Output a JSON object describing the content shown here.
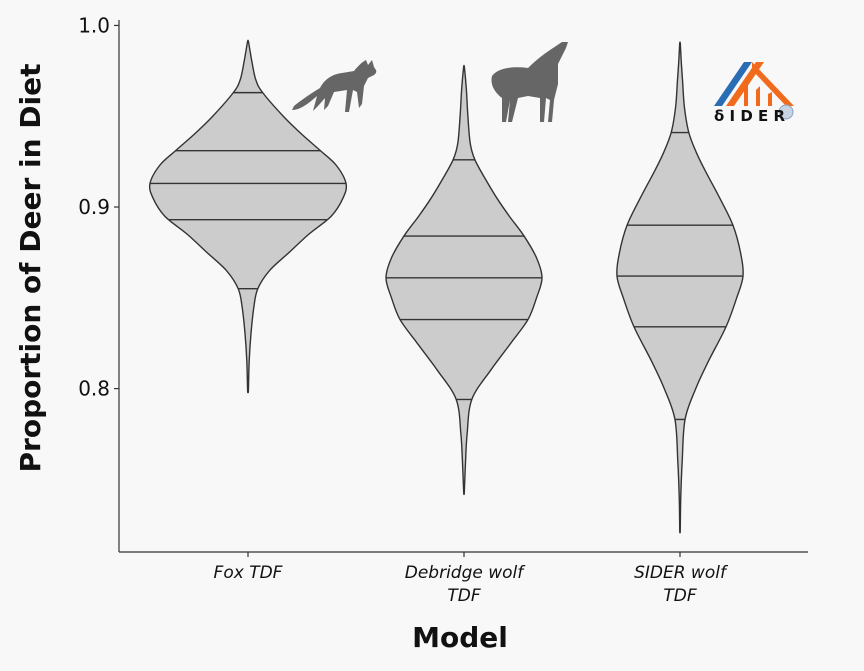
{
  "chart_data": {
    "type": "violin",
    "xlabel": "Model",
    "ylabel": "Proportion of Deer in Diet",
    "ylim": [
      0.71,
      1.003
    ],
    "yticks": [
      0.8,
      0.9,
      1.0
    ],
    "ytick_labels": [
      "0.8",
      "0.9",
      "1.0"
    ],
    "categories": [
      [
        "Fox TDF"
      ],
      [
        "Debridge wolf",
        "TDF"
      ],
      [
        "SIDER wolf",
        "TDF"
      ]
    ],
    "series": [
      {
        "name": "Fox TDF",
        "min": 0.799,
        "max": 0.991,
        "quantiles": [
          0.855,
          0.893,
          0.913,
          0.931,
          0.963
        ],
        "profile": [
          [
            0.799,
            0.004
          ],
          [
            0.815,
            0.012
          ],
          [
            0.83,
            0.03
          ],
          [
            0.845,
            0.06
          ],
          [
            0.855,
            0.1
          ],
          [
            0.865,
            0.22
          ],
          [
            0.875,
            0.42
          ],
          [
            0.885,
            0.62
          ],
          [
            0.895,
            0.85
          ],
          [
            0.905,
            0.97
          ],
          [
            0.913,
            1.0
          ],
          [
            0.923,
            0.9
          ],
          [
            0.931,
            0.74
          ],
          [
            0.94,
            0.55
          ],
          [
            0.95,
            0.36
          ],
          [
            0.963,
            0.15
          ],
          [
            0.97,
            0.08
          ],
          [
            0.98,
            0.04
          ],
          [
            0.991,
            0.005
          ]
        ]
      },
      {
        "name": "Debridge wolf TDF",
        "min": 0.743,
        "max": 0.977,
        "quantiles": [
          0.794,
          0.838,
          0.861,
          0.884,
          0.926
        ],
        "profile": [
          [
            0.743,
            0.004
          ],
          [
            0.76,
            0.02
          ],
          [
            0.775,
            0.04
          ],
          [
            0.794,
            0.1
          ],
          [
            0.81,
            0.34
          ],
          [
            0.825,
            0.6
          ],
          [
            0.838,
            0.82
          ],
          [
            0.85,
            0.93
          ],
          [
            0.861,
            1.0
          ],
          [
            0.872,
            0.93
          ],
          [
            0.884,
            0.77
          ],
          [
            0.895,
            0.58
          ],
          [
            0.905,
            0.42
          ],
          [
            0.915,
            0.28
          ],
          [
            0.926,
            0.14
          ],
          [
            0.935,
            0.08
          ],
          [
            0.95,
            0.05
          ],
          [
            0.965,
            0.03
          ],
          [
            0.977,
            0.005
          ]
        ]
      },
      {
        "name": "SIDER wolf TDF",
        "min": 0.722,
        "max": 0.99,
        "quantiles": [
          0.783,
          0.834,
          0.862,
          0.89,
          0.941
        ],
        "profile": [
          [
            0.722,
            0.004
          ],
          [
            0.74,
            0.012
          ],
          [
            0.76,
            0.035
          ],
          [
            0.783,
            0.08
          ],
          [
            0.8,
            0.25
          ],
          [
            0.815,
            0.45
          ],
          [
            0.834,
            0.73
          ],
          [
            0.85,
            0.9
          ],
          [
            0.862,
            1.0
          ],
          [
            0.875,
            0.96
          ],
          [
            0.89,
            0.84
          ],
          [
            0.905,
            0.63
          ],
          [
            0.92,
            0.4
          ],
          [
            0.93,
            0.26
          ],
          [
            0.941,
            0.14
          ],
          [
            0.955,
            0.07
          ],
          [
            0.97,
            0.04
          ],
          [
            0.98,
            0.02
          ],
          [
            0.99,
            0.005
          ]
        ]
      }
    ],
    "fill_color": "#cccccc",
    "line_color": "#333333",
    "background": "#f8f8f8",
    "legend": "none",
    "grid": false
  },
  "annotations": {
    "fox_icon": "fox-silhouette-icon",
    "wolf_icon": "howling-wolf-silhouette-icon",
    "sider_logo": {
      "name": "sider-logo",
      "text": "δ I D E R",
      "colors": {
        "orange": "#f26b1d",
        "blue": "#2a6db5"
      }
    }
  }
}
